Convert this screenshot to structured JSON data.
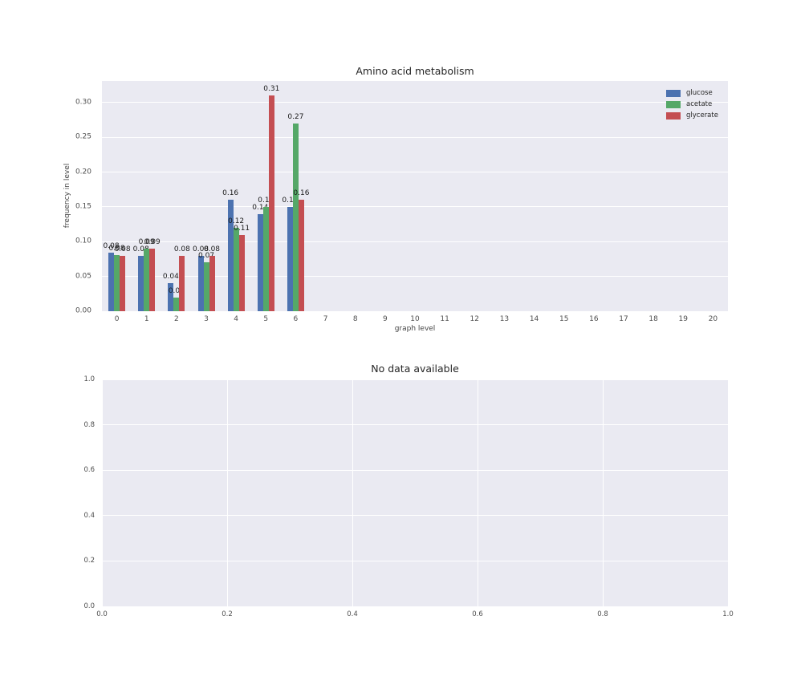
{
  "chart_data": [
    {
      "type": "bar",
      "title": "Amino acid metabolism",
      "xlabel": "graph level",
      "ylabel": "frequency in level",
      "plot_bg": "#eaeaf2",
      "grid_color": "#ffffff",
      "grid": true,
      "legend_position": "upper right",
      "categories": [
        "0",
        "1",
        "2",
        "3",
        "4",
        "5",
        "6",
        "7",
        "8",
        "9",
        "10",
        "11",
        "12",
        "13",
        "14",
        "15",
        "16",
        "17",
        "18",
        "19",
        "20"
      ],
      "ytick_labels": [
        "0.00",
        "0.05",
        "0.10",
        "0.15",
        "0.20",
        "0.25",
        "0.30"
      ],
      "ytick_values": [
        0.0,
        0.05,
        0.1,
        0.15,
        0.2,
        0.25,
        0.3
      ],
      "ylim": [
        0,
        0.331
      ],
      "series": [
        {
          "name": "glucose",
          "color": "#4c72b0",
          "values": [
            0.084,
            0.08,
            0.04,
            0.08,
            0.16,
            0.14,
            0.15
          ],
          "labels": [
            "0.08",
            "0.08",
            "0.04",
            "0.08",
            "0.16",
            "0.14",
            "0.15"
          ]
        },
        {
          "name": "acetate",
          "color": "#55a868",
          "values": [
            0.081,
            0.09,
            0.02,
            0.07,
            0.12,
            0.15,
            0.27
          ],
          "labels": [
            "0.08",
            "0.09",
            "0.02",
            "0.07",
            "0.12",
            "0.15",
            "0.27"
          ]
        },
        {
          "name": "glycerate",
          "color": "#c44e52",
          "values": [
            0.08,
            0.09,
            0.08,
            0.08,
            0.11,
            0.31,
            0.16
          ],
          "labels": [
            "0.08",
            "0.09",
            "0.08",
            "0.08",
            "0.11",
            "0.31",
            "0.16"
          ]
        }
      ]
    },
    {
      "type": "empty",
      "title": "No data available",
      "plot_bg": "#eaeaf2",
      "grid_color": "#ffffff",
      "grid": true,
      "xtick_labels": [
        "0.0",
        "0.2",
        "0.4",
        "0.6",
        "0.8",
        "1.0"
      ],
      "xtick_values": [
        0.0,
        0.2,
        0.4,
        0.6,
        0.8,
        1.0
      ],
      "ytick_labels": [
        "0.0",
        "0.2",
        "0.4",
        "0.6",
        "0.8",
        "1.0"
      ],
      "ytick_values": [
        0.0,
        0.2,
        0.4,
        0.6,
        0.8,
        1.0
      ],
      "xlim": [
        0,
        1
      ],
      "ylim": [
        0,
        1
      ]
    }
  ]
}
